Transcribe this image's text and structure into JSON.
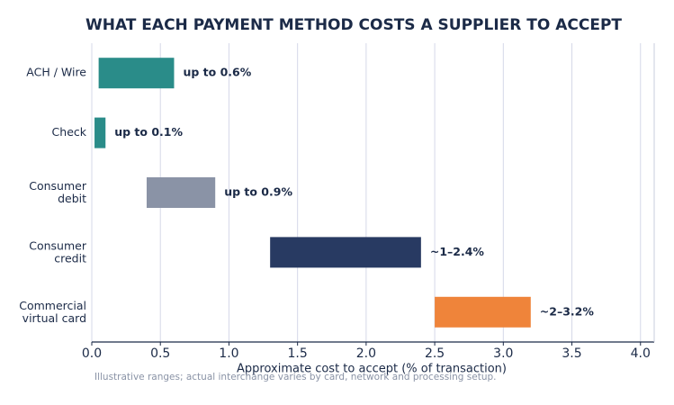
{
  "chart_data": {
    "type": "range-bar",
    "title": "WHAT EACH PAYMENT METHOD COSTS A SUPPLIER TO ACCEPT",
    "x_label": "Approximate cost to accept  (% of transaction)",
    "footnote": "Illustrative ranges; actual interchange varies by card, network and processing setup.",
    "categories": [
      "ACH / Wire",
      "Check",
      "Consumer\ndebit",
      "Consumer\ncredit",
      "Commercial\nvirtual card"
    ],
    "starts": [
      0.05,
      0.02,
      0.4,
      1.3,
      2.5
    ],
    "ends": [
      0.6,
      0.1,
      0.9,
      2.4,
      3.2
    ],
    "value_labels": [
      "up to 0.6%",
      "up to 0.1%",
      "up to 0.9%",
      "~1–2.4%",
      "~2–3.2%"
    ],
    "colors": [
      "#2a8c89",
      "#2a8c89",
      "#8a93a6",
      "#283a62",
      "#ef843a"
    ],
    "xlim": [
      0,
      4.1
    ],
    "xticks": [
      {
        "value": 0,
        "label": "0.0"
      },
      0.5,
      {
        "value": 1,
        "label": "1.0"
      },
      1.5,
      {
        "value": 2,
        "label": "2.0"
      },
      2.5,
      {
        "value": 3,
        "label": "3.0"
      },
      3.5,
      {
        "value": 4,
        "label": "4.0"
      }
    ],
    "grid": true
  }
}
